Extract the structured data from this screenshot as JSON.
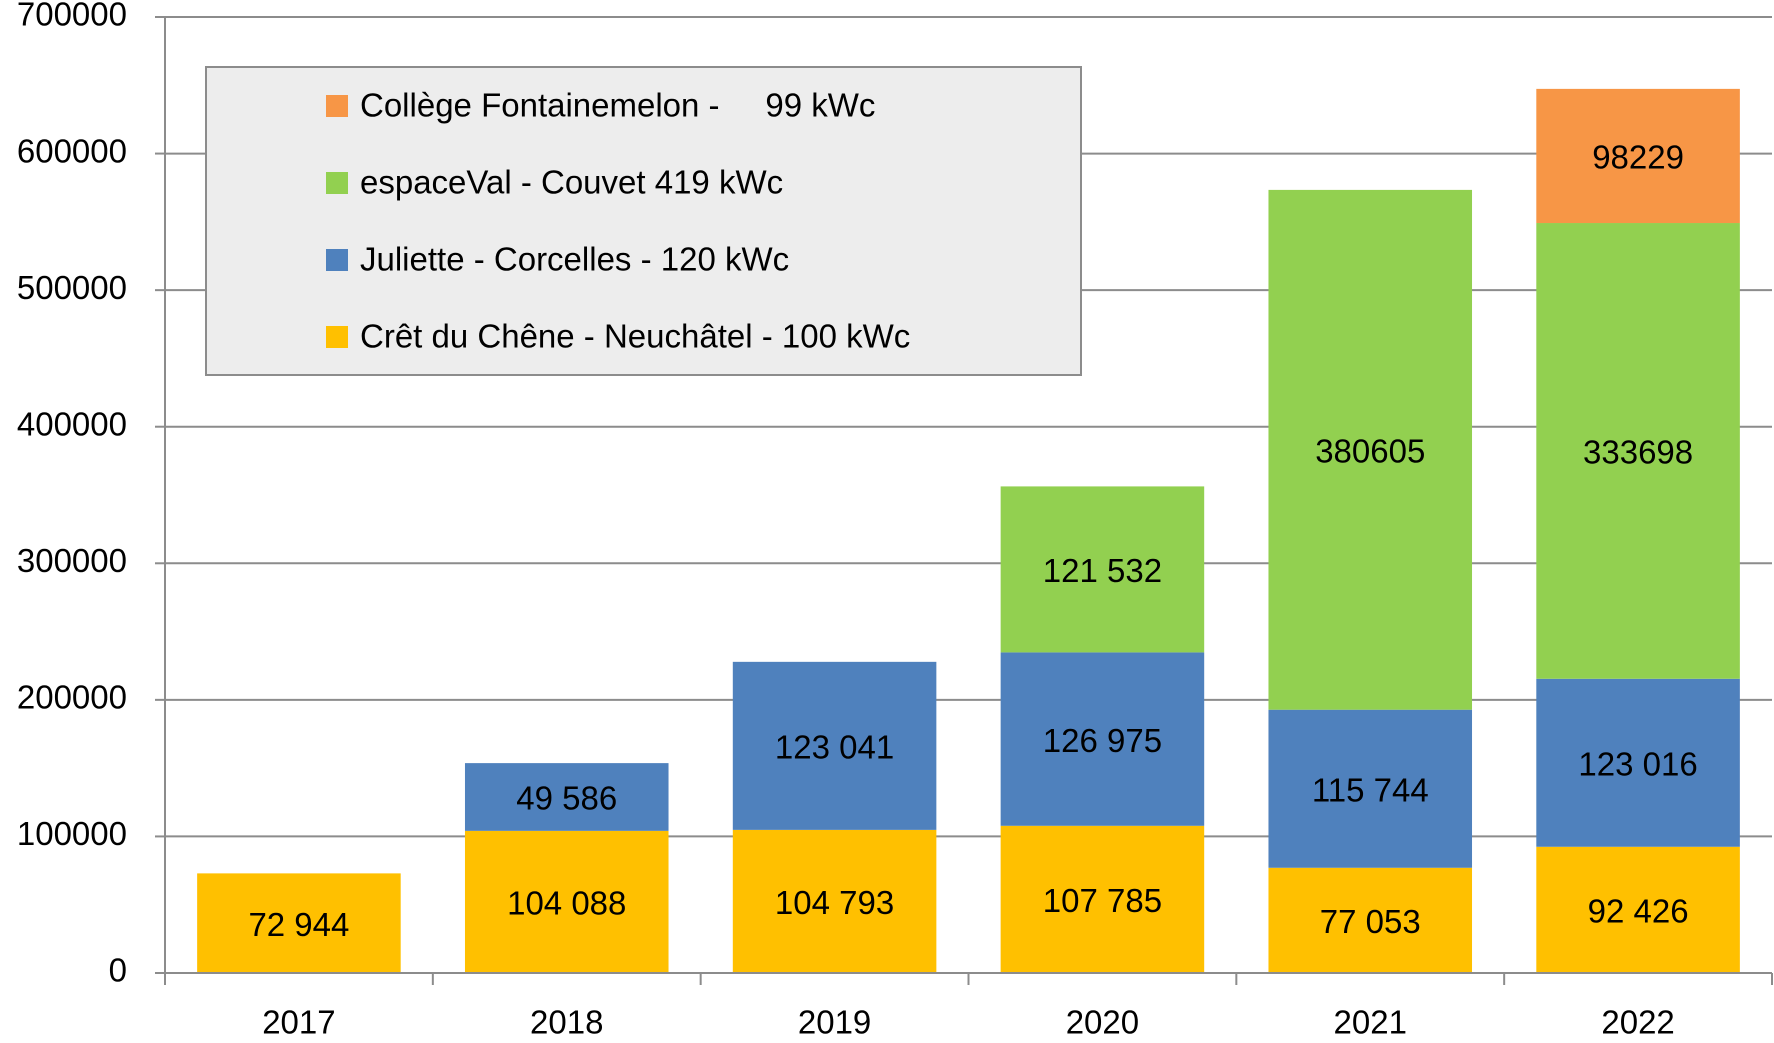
{
  "chart_data": {
    "type": "stacked_bar",
    "categories": [
      "2017",
      "2018",
      "2019",
      "2020",
      "2021",
      "2022"
    ],
    "series": [
      {
        "name": "Crêt du Chêne - Neuchâtel - 100 kWc",
        "color": "#FFC000",
        "values": [
          72944,
          104088,
          104793,
          107785,
          77053,
          92426
        ],
        "value_labels": [
          "72 944",
          "104 088",
          "104 793",
          "107 785",
          "77 053",
          "92 426"
        ]
      },
      {
        "name": "Juliette - Corcelles - 120 kWc",
        "color": "#4F81BD",
        "values": [
          null,
          49586,
          123041,
          126975,
          115744,
          123016
        ],
        "value_labels": [
          null,
          "49 586",
          "123 041",
          "126 975",
          "115 744",
          "123 016"
        ]
      },
      {
        "name": "espaceVal - Couvet 419 kWc",
        "color": "#92D050",
        "values": [
          null,
          null,
          null,
          121532,
          380605,
          333698
        ],
        "value_labels": [
          null,
          null,
          null,
          "121 532",
          "380605",
          "333698"
        ]
      },
      {
        "name": "Collège Fontainemelon -     99 kWc",
        "color": "#F79646",
        "values": [
          null,
          null,
          null,
          null,
          null,
          98229
        ],
        "value_labels": [
          null,
          null,
          null,
          null,
          null,
          "98229"
        ]
      }
    ],
    "ylim": [
      0,
      700000
    ],
    "yticks": [
      0,
      100000,
      200000,
      300000,
      400000,
      500000,
      600000,
      700000
    ],
    "grid": true,
    "legend": "upper left"
  }
}
